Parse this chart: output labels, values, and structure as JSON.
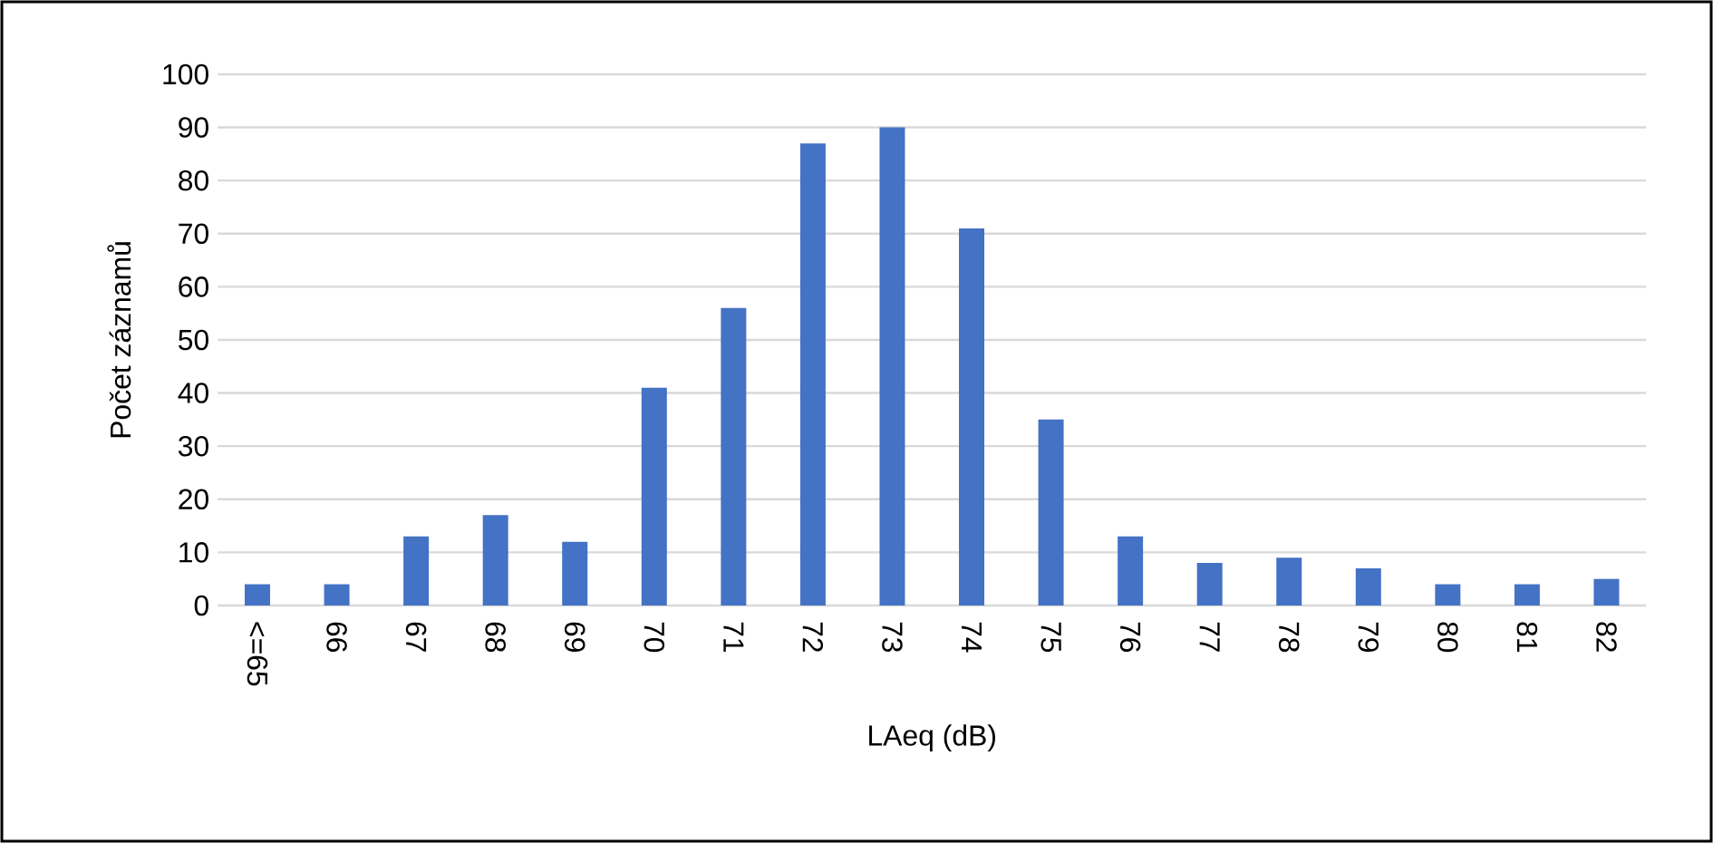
{
  "chart_data": {
    "type": "bar",
    "xlabel": "LAeq (dB)",
    "ylabel": "Počet záznamů",
    "categories": [
      "<=65",
      "66",
      "67",
      "68",
      "69",
      "70",
      "71",
      "72",
      "73",
      "74",
      "75",
      "76",
      "77",
      "78",
      "79",
      "80",
      "81",
      "82"
    ],
    "values": [
      4,
      4,
      13,
      17,
      12,
      41,
      56,
      87,
      90,
      71,
      35,
      13,
      8,
      9,
      7,
      4,
      4,
      5
    ],
    "color": "#4472c4",
    "ylim": [
      0,
      100
    ],
    "yticks": [
      0,
      10,
      20,
      30,
      40,
      50,
      60,
      70,
      80,
      90,
      100
    ],
    "grid": "y"
  }
}
